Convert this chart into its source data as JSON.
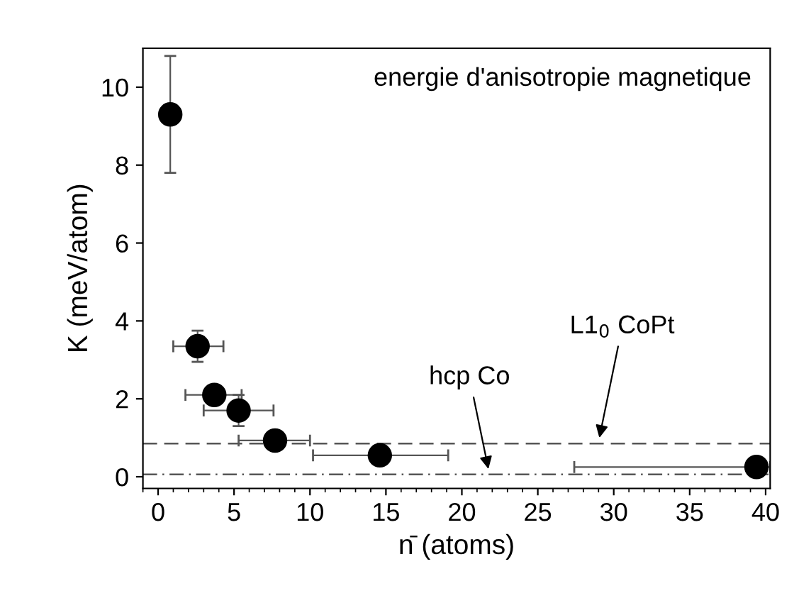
{
  "chart_data": {
    "type": "scatter",
    "xlabel": "n̄ (atoms)",
    "ylabel": "K (meV/atom)",
    "x": [
      0.8,
      2.6,
      3.7,
      5.3,
      7.7,
      14.6,
      39.4
    ],
    "values": [
      9.3,
      3.35,
      2.1,
      1.7,
      0.93,
      0.55,
      0.25
    ],
    "errors": [
      [
        7.8,
        10.8
      ],
      [
        2.95,
        3.75
      ],
      null,
      [
        1.3,
        2.1
      ],
      null,
      null,
      null
    ],
    "xerrors": [
      null,
      [
        1.0,
        4.3
      ],
      [
        1.8,
        5.5
      ],
      [
        3.0,
        7.6
      ],
      [
        5.3,
        10.0
      ],
      [
        10.2,
        19.1
      ],
      [
        27.4,
        40.3
      ]
    ],
    "color": "#000000",
    "marker": "circle",
    "xlim": [
      -1,
      40.3
    ],
    "ylim": [
      -0.3,
      11
    ],
    "xticks": [
      0,
      5,
      10,
      15,
      20,
      25,
      30,
      35,
      40
    ],
    "yticks": [
      0,
      2,
      4,
      6,
      8,
      10
    ],
    "ref_lines": [
      {
        "axis": "y",
        "value": 0.85,
        "line_style": "dashed",
        "color": "#555555"
      },
      {
        "axis": "y",
        "value": 0.06,
        "line_style": "dashdot",
        "color": "#555555"
      }
    ],
    "annotations": [
      "energie d'anisotropie magnetique",
      {
        "text": "L1$_{0}$ CoPt",
        "x": 29,
        "y": 0.9
      },
      {
        "text": "hcp Co",
        "x": 21.8,
        "y": 0.1
      }
    ],
    "grid": false
  }
}
